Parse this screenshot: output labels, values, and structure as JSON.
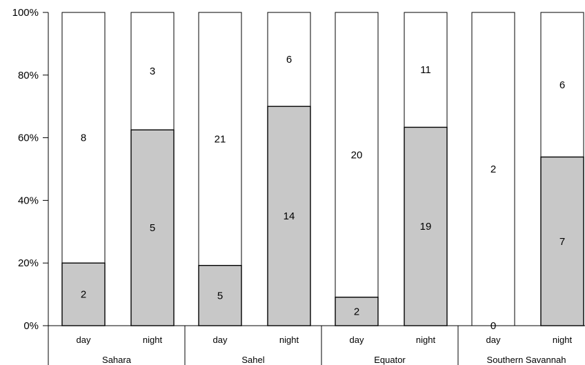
{
  "chart_data": {
    "type": "bar",
    "stacked": true,
    "percent_stacked": true,
    "title": "",
    "xlabel": "",
    "ylabel": "",
    "ylim": [
      0,
      100
    ],
    "y_ticks": [
      "0%",
      "20%",
      "40%",
      "60%",
      "80%",
      "100%"
    ],
    "groups": [
      {
        "name": "Sahara",
        "categories": [
          "day",
          "night"
        ]
      },
      {
        "name": "Sahel",
        "categories": [
          "day",
          "night"
        ]
      },
      {
        "name": "Equator",
        "categories": [
          "day",
          "night"
        ]
      },
      {
        "name": "Southern Savannah",
        "categories": [
          "day",
          "night"
        ]
      }
    ],
    "categories": [
      "day",
      "night",
      "day",
      "night",
      "day",
      "night",
      "day",
      "night"
    ],
    "series": [
      {
        "color": "#c8c8c8",
        "values": [
          2,
          5,
          5,
          14,
          2,
          19,
          0,
          7
        ]
      },
      {
        "color": "#ffffff",
        "values": [
          8,
          3,
          21,
          6,
          20,
          11,
          2,
          6
        ]
      }
    ],
    "grid": false,
    "legend": "none"
  }
}
